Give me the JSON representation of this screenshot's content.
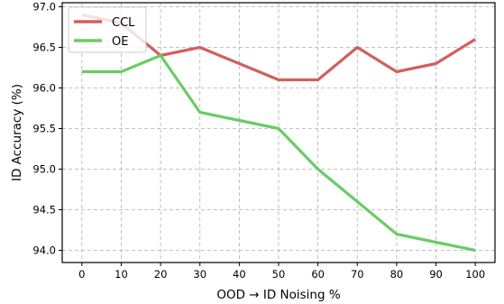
{
  "chart_data": {
    "type": "line",
    "xlabel": "OOD → ID Noising %",
    "ylabel": "ID Accuracy (%)",
    "x": [
      0,
      10,
      20,
      30,
      40,
      50,
      60,
      70,
      80,
      90,
      100
    ],
    "xlim": [
      -5,
      105
    ],
    "ylim": [
      93.85,
      97.05
    ],
    "xticks": [
      0,
      10,
      20,
      30,
      40,
      50,
      60,
      70,
      80,
      90,
      100
    ],
    "yticks": [
      94.0,
      94.5,
      95.0,
      95.5,
      96.0,
      96.5,
      97.0
    ],
    "ytick_labels": [
      "94.0",
      "94.5",
      "95.0",
      "95.5",
      "96.0",
      "96.5",
      "97.0"
    ],
    "grid": true,
    "legend_position": "top-left",
    "series": [
      {
        "name": "CCL",
        "color": "#d0605e",
        "values": [
          96.9,
          96.8,
          96.4,
          96.5,
          96.3,
          96.1,
          96.1,
          96.5,
          96.2,
          96.3,
          96.6
        ]
      },
      {
        "name": "OE",
        "color": "#6acc64",
        "values": [
          96.2,
          96.2,
          96.4,
          95.7,
          95.6,
          95.5,
          95.0,
          94.6,
          94.2,
          94.1,
          94.0
        ]
      }
    ]
  }
}
